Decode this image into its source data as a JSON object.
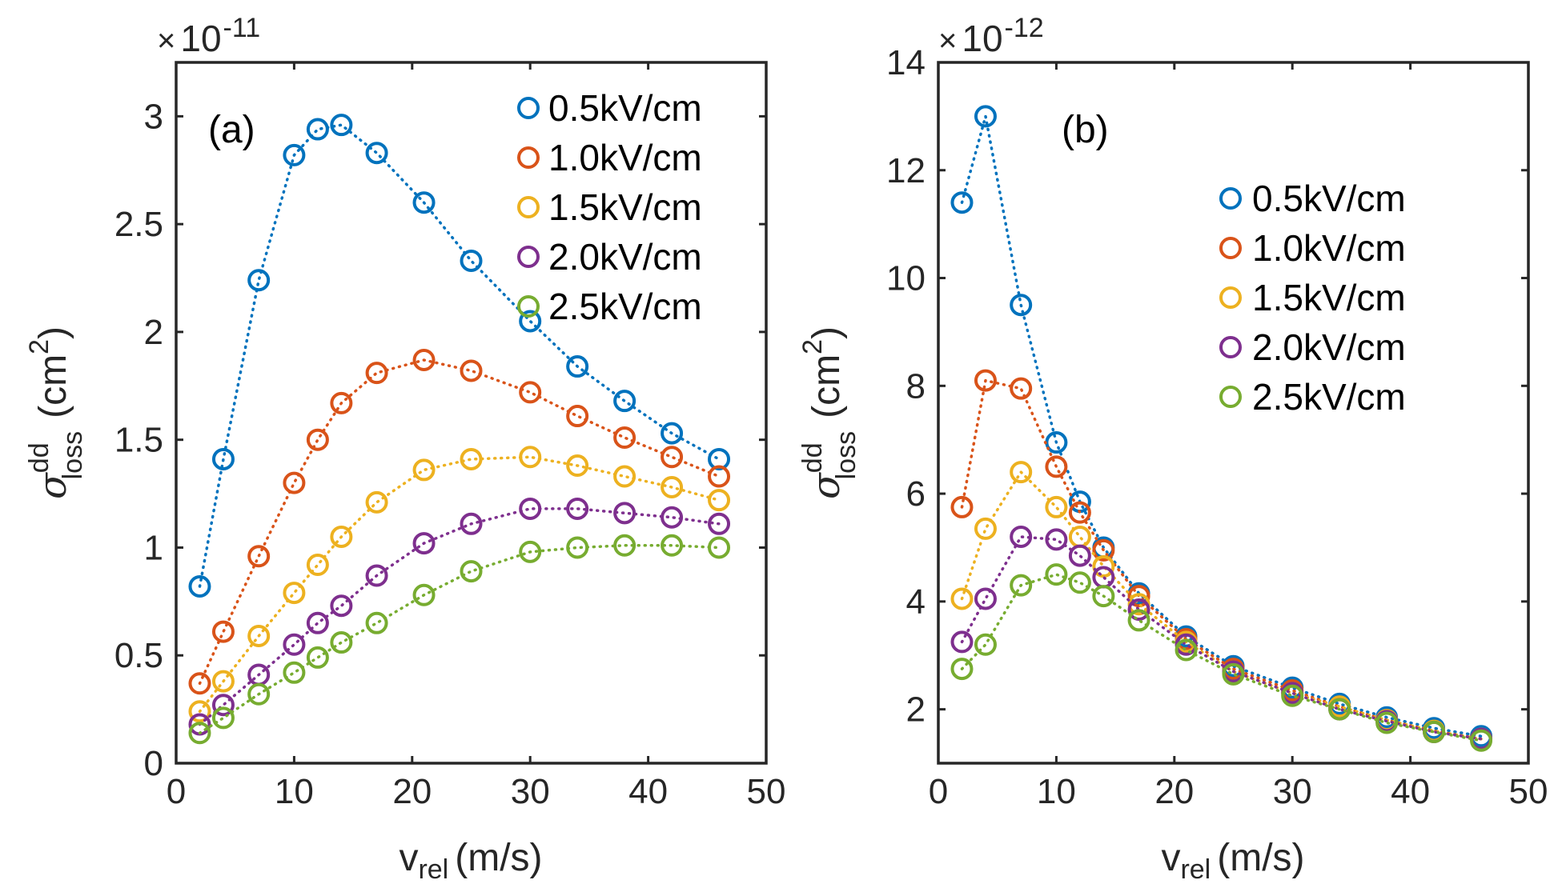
{
  "series_colors": [
    "#0072BD",
    "#D95319",
    "#EDB120",
    "#7E2F8E",
    "#77AC30"
  ],
  "chart_data": [
    {
      "type": "scatter",
      "panel_label": "(a)",
      "x_label_main": "v",
      "x_label_sub": "rel",
      "x_label_unit": "(m/s)",
      "y_label_sigma": "σ",
      "y_label_sup": "dd",
      "y_label_sub": "loss",
      "y_label_unit_open": "(cm",
      "y_label_unit_sup": "2",
      "y_label_unit_close": ")",
      "exponent_prefix": "×",
      "exponent_base": "10",
      "exponent_power": "-11",
      "xlim": [
        0,
        50
      ],
      "ylim": [
        0,
        3.25
      ],
      "x_ticks": [
        0,
        10,
        20,
        30,
        40,
        50
      ],
      "x_tick_labels": [
        "0",
        "10",
        "20",
        "30",
        "40",
        "50"
      ],
      "y_ticks": [
        0,
        0.5,
        1,
        1.5,
        2,
        2.5,
        3
      ],
      "y_tick_labels": [
        "0",
        "0.5",
        "1",
        "1.5",
        "2",
        "2.5",
        "3"
      ],
      "legend_position": "top-right",
      "x": [
        2,
        4,
        7,
        10,
        12,
        14,
        17,
        21,
        25,
        30,
        34,
        38,
        42,
        46
      ],
      "series": [
        {
          "name": "0.5kV/cm",
          "values": [
            0.82,
            1.41,
            2.24,
            2.82,
            2.94,
            2.96,
            2.83,
            2.6,
            2.33,
            2.05,
            1.84,
            1.68,
            1.53,
            1.41
          ]
        },
        {
          "name": "1.0kV/cm",
          "values": [
            0.37,
            0.61,
            0.96,
            1.3,
            1.5,
            1.67,
            1.81,
            1.87,
            1.82,
            1.72,
            1.61,
            1.51,
            1.42,
            1.33
          ]
        },
        {
          "name": "1.5kV/cm",
          "values": [
            0.24,
            0.38,
            0.59,
            0.79,
            0.92,
            1.05,
            1.21,
            1.36,
            1.41,
            1.42,
            1.38,
            1.33,
            1.28,
            1.22
          ]
        },
        {
          "name": "2.0kV/cm",
          "values": [
            0.18,
            0.27,
            0.41,
            0.55,
            0.65,
            0.73,
            0.87,
            1.02,
            1.11,
            1.18,
            1.18,
            1.16,
            1.14,
            1.11
          ]
        },
        {
          "name": "2.5kV/cm",
          "values": [
            0.14,
            0.21,
            0.32,
            0.42,
            0.49,
            0.56,
            0.65,
            0.78,
            0.89,
            0.98,
            1.0,
            1.01,
            1.01,
            1.0
          ]
        }
      ]
    },
    {
      "type": "scatter",
      "panel_label": "(b)",
      "x_label_main": "v",
      "x_label_sub": "rel",
      "x_label_unit": "(m/s)",
      "y_label_sigma": "σ",
      "y_label_sup": "dd",
      "y_label_sub": "loss",
      "y_label_unit_open": "(cm",
      "y_label_unit_sup": "2",
      "y_label_unit_close": ")",
      "exponent_prefix": "×",
      "exponent_base": "10",
      "exponent_power": "-12",
      "xlim": [
        0,
        50
      ],
      "ylim": [
        1,
        14
      ],
      "x_ticks": [
        0,
        10,
        20,
        30,
        40,
        50
      ],
      "x_tick_labels": [
        "0",
        "10",
        "20",
        "30",
        "40",
        "50"
      ],
      "y_ticks": [
        2,
        4,
        6,
        8,
        10,
        12,
        14
      ],
      "y_tick_labels": [
        "2",
        "4",
        "6",
        "8",
        "10",
        "12",
        "14"
      ],
      "legend_position": "upper-right",
      "x": [
        2,
        4,
        7,
        10,
        12,
        14,
        17,
        21,
        25,
        30,
        34,
        38,
        42,
        46
      ],
      "series": [
        {
          "name": "0.5kV/cm",
          "values": [
            11.4,
            13.0,
            9.5,
            6.95,
            5.85,
            5.0,
            4.15,
            3.35,
            2.8,
            2.4,
            2.1,
            1.85,
            1.65,
            1.5
          ]
        },
        {
          "name": "1.0kV/cm",
          "values": [
            5.75,
            8.1,
            7.95,
            6.5,
            5.65,
            4.95,
            4.1,
            3.3,
            2.75,
            2.35,
            2.05,
            1.8,
            1.6,
            1.45
          ]
        },
        {
          "name": "1.5kV/cm",
          "values": [
            4.05,
            5.35,
            6.4,
            5.75,
            5.2,
            4.65,
            3.95,
            3.25,
            2.7,
            2.3,
            2.05,
            1.8,
            1.6,
            1.45
          ]
        },
        {
          "name": "2.0kV/cm",
          "values": [
            3.25,
            4.05,
            5.2,
            5.15,
            4.85,
            4.45,
            3.85,
            3.2,
            2.7,
            2.3,
            2.0,
            1.78,
            1.58,
            1.45
          ]
        },
        {
          "name": "2.5kV/cm",
          "values": [
            2.75,
            3.2,
            4.3,
            4.5,
            4.35,
            4.1,
            3.65,
            3.1,
            2.65,
            2.25,
            2.0,
            1.75,
            1.58,
            1.42
          ]
        }
      ]
    }
  ]
}
